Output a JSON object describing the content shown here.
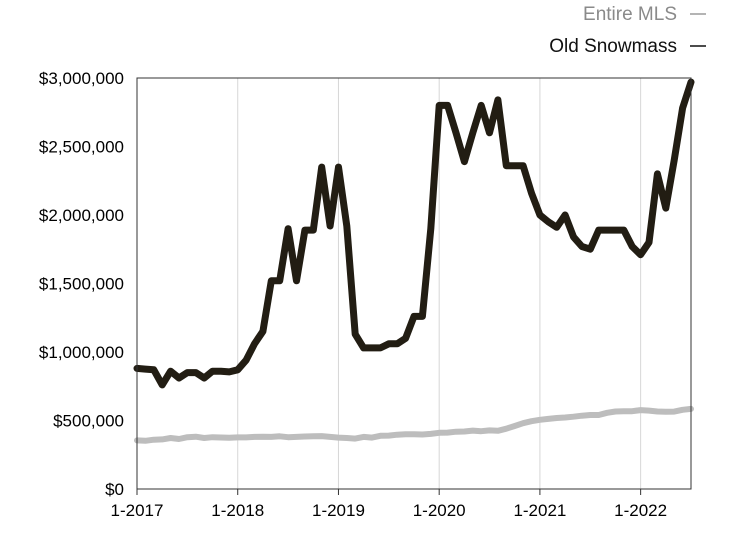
{
  "chart_data": {
    "type": "line",
    "title": "",
    "xlabel": "",
    "ylabel": "",
    "ylim": [
      0,
      3000000
    ],
    "xlim": [
      "2017-01",
      "2022-07"
    ],
    "grid": "vertical",
    "legend_position": "top-right",
    "y_ticks": [
      {
        "value": 0,
        "label": "$0"
      },
      {
        "value": 500000,
        "label": "$500,000"
      },
      {
        "value": 1000000,
        "label": "$1,000,000"
      },
      {
        "value": 1500000,
        "label": "$1,500,000"
      },
      {
        "value": 2000000,
        "label": "$2,000,000"
      },
      {
        "value": 2500000,
        "label": "$2,500,000"
      },
      {
        "value": 3000000,
        "label": "$3,000,000"
      }
    ],
    "x_ticks": [
      {
        "value": "2017-01",
        "label": "1-2017"
      },
      {
        "value": "2018-01",
        "label": "1-2018"
      },
      {
        "value": "2019-01",
        "label": "1-2019"
      },
      {
        "value": "2020-01",
        "label": "1-2020"
      },
      {
        "value": "2021-01",
        "label": "1-2021"
      },
      {
        "value": "2022-01",
        "label": "1-2022"
      }
    ],
    "x": [
      "2017-01",
      "2017-02",
      "2017-03",
      "2017-04",
      "2017-05",
      "2017-06",
      "2017-07",
      "2017-08",
      "2017-09",
      "2017-10",
      "2017-11",
      "2017-12",
      "2018-01",
      "2018-02",
      "2018-03",
      "2018-04",
      "2018-05",
      "2018-06",
      "2018-07",
      "2018-08",
      "2018-09",
      "2018-10",
      "2018-11",
      "2018-12",
      "2019-01",
      "2019-02",
      "2019-03",
      "2019-04",
      "2019-05",
      "2019-06",
      "2019-07",
      "2019-08",
      "2019-09",
      "2019-10",
      "2019-11",
      "2019-12",
      "2020-01",
      "2020-02",
      "2020-03",
      "2020-04",
      "2020-05",
      "2020-06",
      "2020-07",
      "2020-08",
      "2020-09",
      "2020-10",
      "2020-11",
      "2020-12",
      "2021-01",
      "2021-02",
      "2021-03",
      "2021-04",
      "2021-05",
      "2021-06",
      "2021-07",
      "2021-08",
      "2021-09",
      "2021-10",
      "2021-11",
      "2021-12",
      "2022-01",
      "2022-02",
      "2022-03",
      "2022-04",
      "2022-05",
      "2022-06",
      "2022-07"
    ],
    "series": [
      {
        "name": "Entire MLS",
        "color": "#bdbdbd",
        "values": [
          355000,
          352000,
          360000,
          362000,
          372000,
          365000,
          378000,
          382000,
          372000,
          378000,
          376000,
          374000,
          377000,
          377000,
          380000,
          382000,
          380000,
          385000,
          378000,
          380000,
          383000,
          385000,
          386000,
          380000,
          375000,
          372000,
          368000,
          380000,
          375000,
          388000,
          390000,
          396000,
          400000,
          400000,
          398000,
          402000,
          410000,
          412000,
          418000,
          420000,
          426000,
          422000,
          428000,
          425000,
          440000,
          460000,
          480000,
          495000,
          505000,
          512000,
          518000,
          522000,
          528000,
          535000,
          540000,
          540000,
          556000,
          566000,
          568000,
          568000,
          576000,
          572000,
          566000,
          564000,
          565000,
          578000,
          585000
        ]
      },
      {
        "name": "Old Snowmass",
        "color": "#221d13",
        "values": [
          880000,
          875000,
          870000,
          760000,
          860000,
          810000,
          850000,
          850000,
          810000,
          860000,
          860000,
          855000,
          870000,
          940000,
          1060000,
          1150000,
          1520000,
          1520000,
          1900000,
          1520000,
          1890000,
          1890000,
          2350000,
          1920000,
          2350000,
          1920000,
          1130000,
          1030000,
          1030000,
          1030000,
          1060000,
          1060000,
          1100000,
          1260000,
          1260000,
          1900000,
          2800000,
          2800000,
          2600000,
          2390000,
          2600000,
          2800000,
          2600000,
          2840000,
          2360000,
          2360000,
          2360000,
          2160000,
          2000000,
          1950000,
          1910000,
          2000000,
          1840000,
          1770000,
          1750000,
          1890000,
          1890000,
          1890000,
          1890000,
          1770000,
          1710000,
          1800000,
          2300000,
          2050000,
          2400000,
          2780000,
          2970000
        ]
      }
    ]
  }
}
